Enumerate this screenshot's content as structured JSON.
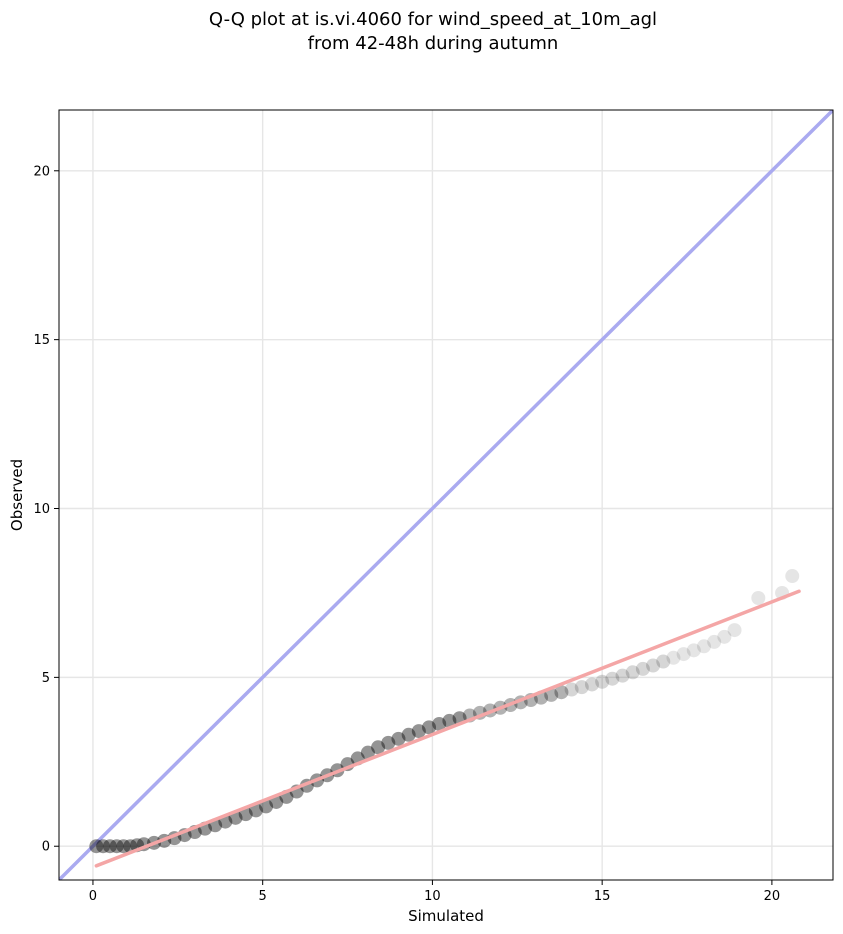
{
  "chart_data": {
    "type": "scatter",
    "title_lines": [
      "Q-Q plot at is.vi.4060 for wind_speed_at_10m_agl",
      "from 42-48h during autumn"
    ],
    "xlabel": "Simulated",
    "ylabel": "Observed",
    "xlim": [
      -1.0,
      21.8
    ],
    "ylim": [
      -1.0,
      21.8
    ],
    "xticks": [
      0,
      5,
      10,
      15,
      20
    ],
    "yticks": [
      0,
      5,
      10,
      15,
      20
    ],
    "xtick_labels": [
      "0",
      "5",
      "10",
      "15",
      "20"
    ],
    "ytick_labels": [
      "0",
      "5",
      "10",
      "15",
      "20"
    ],
    "grid": true,
    "reference_line": {
      "x": [
        -1.0,
        21.8
      ],
      "y": [
        -1.0,
        21.8
      ],
      "color": "#aaaaf0"
    },
    "fit_line": {
      "x": [
        0.1,
        20.8
      ],
      "y": [
        -0.58,
        7.55
      ],
      "color": "#f4a6a6"
    },
    "points": {
      "x": [
        0.1,
        0.3,
        0.5,
        0.7,
        0.9,
        1.1,
        1.3,
        1.5,
        1.8,
        2.1,
        2.4,
        2.7,
        3.0,
        3.3,
        3.6,
        3.9,
        4.2,
        4.5,
        4.8,
        5.1,
        5.4,
        5.7,
        6.0,
        6.3,
        6.6,
        6.9,
        7.2,
        7.5,
        7.8,
        8.1,
        8.4,
        8.7,
        9.0,
        9.3,
        9.6,
        9.9,
        10.2,
        10.5,
        10.8,
        11.1,
        11.4,
        11.7,
        12.0,
        12.3,
        12.6,
        12.9,
        13.2,
        13.5,
        13.8,
        14.1,
        14.4,
        14.7,
        15.0,
        15.3,
        15.6,
        15.9,
        16.2,
        16.5,
        16.8,
        17.1,
        17.4,
        17.7,
        18.0,
        18.3,
        18.6,
        18.9,
        19.6,
        20.3,
        20.6
      ],
      "y": [
        0.0,
        0.0,
        0.0,
        0.0,
        0.0,
        0.0,
        0.03,
        0.06,
        0.1,
        0.16,
        0.24,
        0.33,
        0.42,
        0.52,
        0.62,
        0.73,
        0.84,
        0.95,
        1.06,
        1.18,
        1.31,
        1.46,
        1.62,
        1.79,
        1.95,
        2.1,
        2.25,
        2.43,
        2.6,
        2.77,
        2.93,
        3.06,
        3.18,
        3.3,
        3.41,
        3.52,
        3.62,
        3.71,
        3.79,
        3.87,
        3.95,
        4.02,
        4.1,
        4.18,
        4.26,
        4.33,
        4.4,
        4.48,
        4.56,
        4.64,
        4.71,
        4.79,
        4.87,
        4.96,
        5.05,
        5.15,
        5.25,
        5.35,
        5.47,
        5.58,
        5.69,
        5.8,
        5.92,
        6.05,
        6.2,
        6.4,
        7.35,
        7.5,
        8.0
      ],
      "color": "#000000"
    }
  }
}
